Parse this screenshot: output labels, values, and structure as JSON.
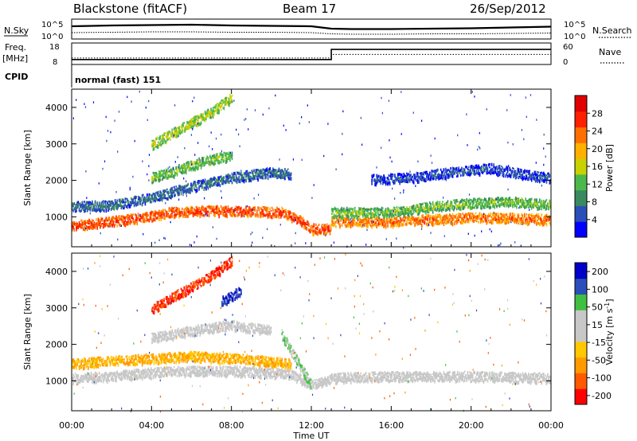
{
  "header": {
    "station": "Blackstone (fitACF)",
    "beam": "Beam 17",
    "date": "26/Sep/2012"
  },
  "noise_panel": {
    "left_label": "N.Sky",
    "left_ticks": [
      "10^5",
      "10^0"
    ],
    "right_label": "N.Search",
    "right_ticks": [
      "10^5",
      "10^0"
    ]
  },
  "freq_panel": {
    "left_label_1": "Freq.",
    "left_label_2": "[MHz]",
    "left_ticks": [
      "18",
      "8"
    ],
    "right_label": "Nave",
    "right_ticks": [
      "60",
      "0"
    ],
    "cpid_label": "CPID",
    "cpid_value": "normal (fast) 151"
  },
  "colors": {
    "power": [
      "#0000ff",
      "#2a4fb8",
      "#3a8a60",
      "#4cb84c",
      "#c8d200",
      "#ffb000",
      "#ff7000",
      "#ff2000",
      "#e00000"
    ],
    "velocity": [
      "#ff0000",
      "#ff5a00",
      "#ff9a00",
      "#ffc800",
      "#c8c8c8",
      "#c8c8c8",
      "#40c040",
      "#2a4fb8",
      "#0000c8"
    ]
  },
  "chart_data": [
    {
      "type": "line",
      "panel": "noise",
      "x": [
        0,
        2,
        4,
        6,
        8,
        10,
        12,
        13,
        14,
        16,
        18,
        20,
        22,
        24
      ],
      "series": [
        {
          "name": "N.Sky",
          "values": [
            3.2,
            3.4,
            3.5,
            3.6,
            3.4,
            3.3,
            3.2,
            2.6,
            2.5,
            2.5,
            2.6,
            2.7,
            2.9,
            3.1
          ]
        },
        {
          "name": "N.Search",
          "values": [
            1.6,
            1.7,
            1.8,
            1.8,
            1.7,
            1.7,
            1.6,
            1.3,
            1.2,
            1.2,
            1.3,
            1.3,
            1.4,
            1.5
          ]
        }
      ],
      "xlim": [
        0,
        24
      ]
    },
    {
      "type": "line",
      "panel": "frequency",
      "x": [
        0,
        13,
        13,
        24
      ],
      "series": [
        {
          "name": "Freq.",
          "values": [
            10.3,
            10.3,
            15.0,
            15.0
          ]
        },
        {
          "name": "Nave",
          "values": [
            18,
            18,
            28,
            28
          ]
        }
      ],
      "ylim_left": [
        8,
        18
      ],
      "ylim_right": [
        0,
        60
      ],
      "xlim": [
        0,
        24
      ]
    },
    {
      "type": "heatmap",
      "panel": "power",
      "ylabel": "Slant Range [km]",
      "ytick_labels": [
        "1000",
        "2000",
        "3000",
        "4000"
      ],
      "yticks": [
        1000,
        2000,
        3000,
        4000
      ],
      "ylim": [
        180,
        4500
      ],
      "xlim": [
        0,
        24
      ],
      "colorbar": {
        "label": "Power [dB]",
        "tick_labels": [
          "4",
          "8",
          "12",
          "16",
          "20",
          "24",
          "28"
        ],
        "ticks": [
          4,
          8,
          12,
          16,
          20,
          24,
          28
        ],
        "range": [
          0,
          32
        ]
      },
      "echo_bands": [
        {
          "x": [
            0,
            2,
            4,
            6,
            8,
            10,
            11
          ],
          "range_km": [
            1300,
            1350,
            1550,
            1850,
            2100,
            2250,
            2200
          ],
          "power_db": 8
        },
        {
          "x": [
            0,
            2,
            3.5,
            5,
            7,
            9,
            10.5,
            11.5,
            12,
            13
          ],
          "range_km": [
            780,
            900,
            1000,
            1150,
            1200,
            1180,
            1150,
            900,
            700,
            700
          ],
          "power_db": 26
        },
        {
          "x": [
            13,
            16,
            18,
            20,
            22,
            24
          ],
          "range_km": [
            900,
            900,
            950,
            1000,
            1000,
            950
          ],
          "power_db": 24
        },
        {
          "x": [
            13,
            16,
            18,
            20,
            22,
            24
          ],
          "range_km": [
            1150,
            1150,
            1300,
            1400,
            1450,
            1350
          ],
          "power_db": 14
        },
        {
          "x": [
            4,
            5,
            6,
            7,
            8
          ],
          "range_km": [
            3000,
            3300,
            3600,
            3900,
            4300
          ],
          "power_db": 16
        },
        {
          "x": [
            4,
            5,
            6,
            7,
            8
          ],
          "range_km": [
            2100,
            2250,
            2450,
            2600,
            2700
          ],
          "power_db": 14
        },
        {
          "x": [
            15,
            17,
            19,
            21,
            23,
            24
          ],
          "range_km": [
            2050,
            2100,
            2250,
            2350,
            2150,
            2100
          ],
          "power_db": 6
        }
      ]
    },
    {
      "type": "heatmap",
      "panel": "velocity",
      "ylabel": "Slant Range [km]",
      "xlabel": "Time UT",
      "xtick_labels": [
        "00:00",
        "04:00",
        "08:00",
        "12:00",
        "16:00",
        "20:00",
        "00:00"
      ],
      "xticks": [
        0,
        4,
        8,
        12,
        16,
        20,
        24
      ],
      "ytick_labels": [
        "1000",
        "2000",
        "3000",
        "4000"
      ],
      "yticks": [
        1000,
        2000,
        3000,
        4000
      ],
      "ylim": [
        180,
        4500
      ],
      "xlim": [
        0,
        24
      ],
      "colorbar": {
        "label": "Velocity [m s^-1]",
        "tick_labels": [
          "-200",
          "-100",
          "-50",
          "-15",
          "15",
          "50",
          "100",
          "200"
        ],
        "ticks": [
          -200,
          -100,
          -50,
          -15,
          15,
          50,
          100,
          200
        ]
      },
      "echo_bands": [
        {
          "x": [
            0,
            2,
            4,
            6,
            8,
            10,
            11,
            12,
            13,
            16,
            20,
            24
          ],
          "range_km": [
            1100,
            1150,
            1250,
            1300,
            1300,
            1250,
            1200,
            900,
            1100,
            1150,
            1150,
            1100
          ],
          "velocity": 0
        },
        {
          "x": [
            4,
            6,
            8,
            10
          ],
          "range_km": [
            2200,
            2400,
            2550,
            2400
          ],
          "velocity": 0
        },
        {
          "x": [
            4,
            5,
            6,
            7,
            8
          ],
          "range_km": [
            3000,
            3300,
            3600,
            3900,
            4300
          ],
          "velocity": -200
        },
        {
          "x": [
            7.5,
            8.5
          ],
          "range_km": [
            3200,
            3500
          ],
          "velocity": 200
        },
        {
          "x": [
            10.5,
            12
          ],
          "range_km": [
            2300,
            900
          ],
          "velocity": 50
        },
        {
          "x": [
            0,
            3,
            6,
            9,
            11
          ],
          "range_km": [
            1500,
            1600,
            1700,
            1600,
            1500
          ],
          "velocity": -50
        }
      ]
    }
  ]
}
